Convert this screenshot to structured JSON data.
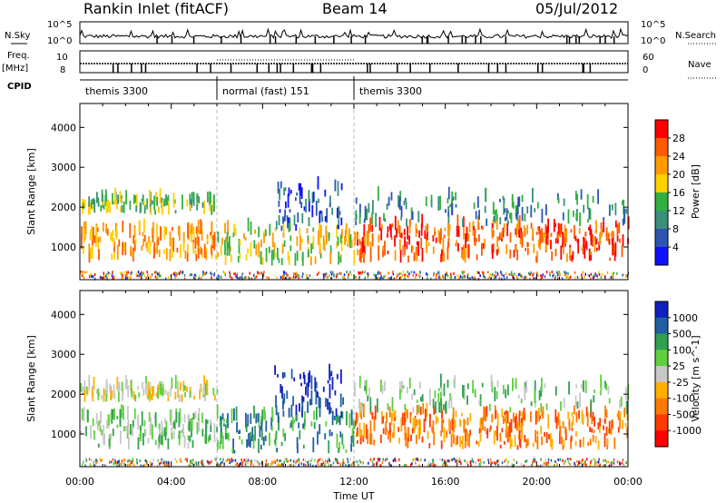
{
  "header": {
    "station": "Rankin Inlet (fitACF)",
    "beam": "Beam 14",
    "date": "05/Jul/2012"
  },
  "side_labels": {
    "nsky": "N.Sky",
    "nsearch": "N.Search",
    "freq": "Freq.",
    "freq_unit": "[MHz]",
    "nave": "Nave",
    "cpid": "CPID",
    "nsky_top": "10^5",
    "nsky_bot": "10^0",
    "nsearch_top": "10^5",
    "nsearch_bot": "10^0",
    "freq_top": "10",
    "freq_bot": "8",
    "nave_top": "60",
    "nave_bot": "0"
  },
  "cpid_segments": [
    {
      "label": "themis 3300",
      "start_hour": 0,
      "end_hour": 6
    },
    {
      "label": "normal (fast) 151",
      "start_hour": 6,
      "end_hour": 12
    },
    {
      "label": "themis 3300",
      "start_hour": 12,
      "end_hour": 24
    }
  ],
  "chart_data": [
    {
      "type": "heatmap",
      "name": "power",
      "ylabel": "Slant Range [km]",
      "xlabel": "",
      "xlim": [
        0,
        24
      ],
      "ylim": [
        180,
        4600
      ],
      "yticks": [
        1000,
        2000,
        3000,
        4000
      ],
      "colorbar_label": "Power [dB]",
      "colorbar_ticks": [
        "28",
        "24",
        "20",
        "16",
        "12",
        "8",
        "4"
      ],
      "colorbar_colors": [
        "#ff0000",
        "#ff5a00",
        "#ff9a00",
        "#ffd000",
        "#33b040",
        "#3a8f7a",
        "#2c56b0",
        "#1010ff"
      ],
      "bands": [
        {
          "x0": 0.0,
          "x1": 6.0,
          "y0": 600,
          "y1": 1400,
          "density": 0.8,
          "color": 2
        },
        {
          "x0": 0.0,
          "x1": 6.0,
          "y0": 1800,
          "y1": 2150,
          "density": 0.6,
          "color": 4
        },
        {
          "x0": 6.0,
          "x1": 12.0,
          "y0": 500,
          "y1": 1400,
          "density": 0.7,
          "color": 3
        },
        {
          "x0": 8.5,
          "x1": 11.5,
          "y0": 1400,
          "y1": 2500,
          "density": 0.7,
          "color": 6
        },
        {
          "x0": 12.0,
          "x1": 24.0,
          "y0": 600,
          "y1": 1500,
          "density": 0.85,
          "color": 1
        },
        {
          "x0": 12.0,
          "x1": 24.0,
          "y0": 1500,
          "y1": 2200,
          "density": 0.35,
          "color": 5
        }
      ]
    },
    {
      "type": "heatmap",
      "name": "velocity",
      "ylabel": "Slant Range [km]",
      "xlabel": "Time UT",
      "xlim": [
        0,
        24
      ],
      "ylim": [
        180,
        4600
      ],
      "yticks": [
        1000,
        2000,
        3000,
        4000
      ],
      "xticks": [
        "00:00",
        "04:00",
        "08:00",
        "12:00",
        "16:00",
        "20:00",
        "00:00"
      ],
      "colorbar_label": "Velocity [m s^-1]",
      "colorbar_ticks": [
        "1000",
        "500",
        "100",
        "25",
        "-25",
        "-100",
        "-500",
        "-1000"
      ],
      "colorbar_colors": [
        "#1020c0",
        "#2060a0",
        "#30a050",
        "#60d040",
        "#c8c8c8",
        "#ffb000",
        "#ff7a00",
        "#ff3a00",
        "#ff0000"
      ],
      "bands": [
        {
          "x0": 0.0,
          "x1": 6.0,
          "y0": 600,
          "y1": 1400,
          "density": 0.8,
          "color": 3
        },
        {
          "x0": 0.0,
          "x1": 6.0,
          "y0": 1800,
          "y1": 2150,
          "density": 0.6,
          "color": 4
        },
        {
          "x0": 6.0,
          "x1": 12.0,
          "y0": 500,
          "y1": 1400,
          "density": 0.7,
          "color": 2
        },
        {
          "x0": 8.5,
          "x1": 11.5,
          "y0": 1400,
          "y1": 2500,
          "density": 0.7,
          "color": 0
        },
        {
          "x0": 12.0,
          "x1": 24.0,
          "y0": 600,
          "y1": 1500,
          "density": 0.85,
          "color": 6
        },
        {
          "x0": 12.0,
          "x1": 24.0,
          "y0": 1500,
          "y1": 2200,
          "density": 0.35,
          "color": 3
        }
      ]
    }
  ]
}
